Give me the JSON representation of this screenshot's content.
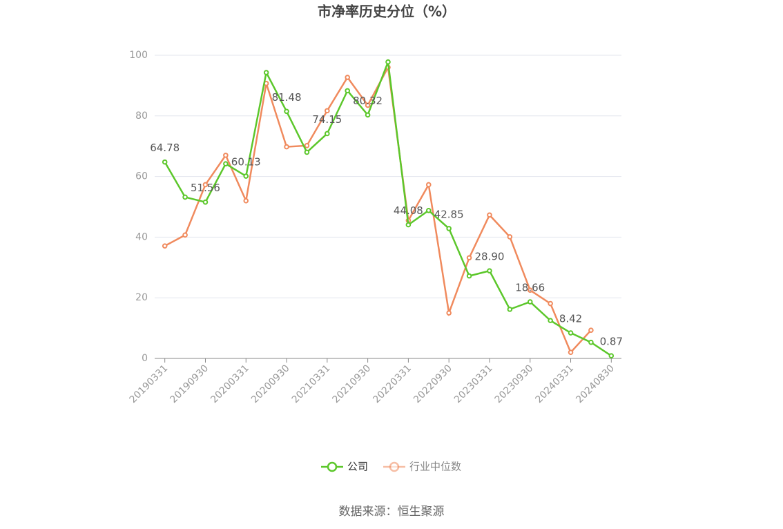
{
  "chart_data": {
    "type": "line",
    "title": "市净率历史分位（%）",
    "source": "数据来源：恒生聚源",
    "categories": [
      "20190331",
      null,
      "20190930",
      null,
      "20200331",
      null,
      "20200930",
      null,
      "20210331",
      null,
      "20210930",
      null,
      "20220331",
      null,
      "20220930",
      null,
      "20230331",
      null,
      "20230930",
      null,
      "20240331",
      null,
      "20240830"
    ],
    "series": [
      {
        "name": "公司",
        "color": "#5cc72b",
        "values": [
          64.78,
          53.2,
          51.56,
          64.2,
          60.13,
          94.3,
          81.48,
          68.0,
          74.15,
          88.3,
          80.32,
          97.8,
          44.08,
          48.8,
          42.85,
          27.2,
          28.9,
          16.2,
          18.66,
          12.5,
          8.42,
          5.3,
          0.87
        ],
        "value_labels": [
          "64.78",
          null,
          "51.56",
          null,
          "60.13",
          null,
          "81.48",
          null,
          "74.15",
          null,
          "80.32",
          null,
          "44.08",
          null,
          "42.85",
          null,
          "28.90",
          null,
          "18.66",
          null,
          "8.42",
          null,
          "0.87"
        ]
      },
      {
        "name": "行业中位数",
        "color": "#f08a5d",
        "values": [
          37.1,
          40.7,
          57.3,
          67.0,
          52.0,
          90.7,
          69.8,
          70.2,
          81.7,
          92.7,
          83.5,
          96.0,
          45.5,
          57.3,
          15.0,
          33.2,
          47.3,
          40.1,
          22.5,
          18.1,
          2.0,
          9.3,
          null
        ]
      }
    ],
    "ylim": [
      0,
      100
    ],
    "yticks": [
      0,
      20,
      40,
      60,
      80,
      100
    ],
    "grid": true,
    "legend": "bottom"
  }
}
